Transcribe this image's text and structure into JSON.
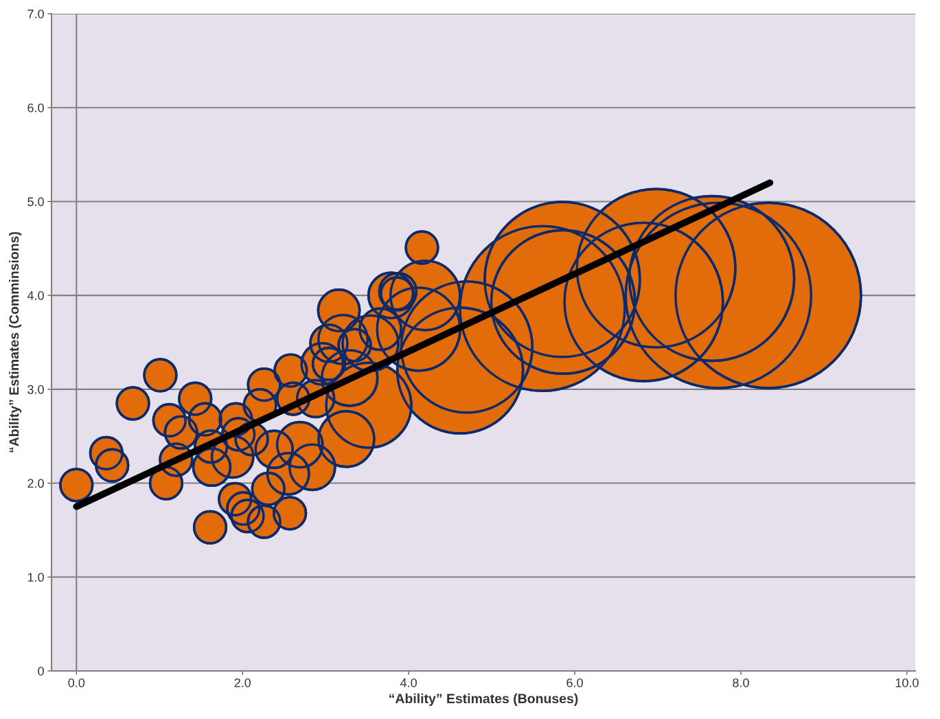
{
  "chart_data": {
    "type": "bubble",
    "xlabel": "“Ability” Estimates (Bonuses)",
    "ylabel": "“Ability” Estimates (Comminsions)",
    "xlim": [
      -0.3,
      10.1
    ],
    "ylim": [
      0,
      7
    ],
    "xticks": [
      {
        "value": 0,
        "label": "0.0"
      },
      {
        "value": 2,
        "label": "2.0"
      },
      {
        "value": 4,
        "label": "4.0"
      },
      {
        "value": 6,
        "label": "6.0"
      },
      {
        "value": 8,
        "label": "8.0"
      },
      {
        "value": 10,
        "label": "10.0"
      }
    ],
    "yticks": [
      0,
      {
        "value": 1,
        "label": "1.0"
      },
      {
        "value": 2,
        "label": "2.0"
      },
      {
        "value": 3,
        "label": "3.0"
      },
      {
        "value": 4,
        "label": "4.0"
      },
      {
        "value": 5,
        "label": "5.0"
      },
      {
        "value": 6,
        "label": "6.0"
      },
      {
        "value": 7,
        "label": "7.0"
      }
    ],
    "grid": "y",
    "ref_lines": [
      {
        "axis": "x",
        "value": 0,
        "color": "#808080"
      }
    ],
    "series": [
      {
        "color": "#e36c0a",
        "x": [
          0.0,
          0.36,
          0.43,
          0.68,
          1.01,
          1.08,
          1.12,
          1.2,
          1.26,
          1.43,
          1.55,
          1.61,
          1.63,
          1.62,
          1.88,
          1.92,
          1.91,
          2.01,
          2.06,
          1.95,
          2.11,
          2.26,
          2.26,
          2.31,
          2.21,
          2.38,
          2.55,
          2.57,
          2.58,
          2.61,
          2.84,
          2.69,
          2.88,
          2.96,
          3.04,
          3.16,
          3.21,
          3.04,
          3.25,
          3.29,
          3.35,
          3.52,
          3.54,
          3.66,
          3.79,
          3.87,
          3.86,
          4.16,
          4.2,
          4.12,
          4.7,
          4.62,
          5.61,
          5.86,
          5.85,
          6.98,
          6.83,
          7.65,
          7.73,
          8.33
        ],
        "values": [
          1.98,
          2.32,
          2.19,
          2.85,
          3.15,
          2.0,
          2.67,
          2.25,
          2.54,
          2.9,
          2.68,
          1.53,
          2.17,
          2.39,
          2.28,
          2.68,
          1.83,
          1.73,
          1.65,
          2.52,
          2.47,
          3.05,
          1.59,
          1.94,
          2.83,
          2.36,
          2.1,
          1.68,
          3.2,
          2.9,
          2.17,
          2.41,
          2.9,
          3.27,
          3.49,
          3.84,
          3.53,
          3.27,
          2.47,
          3.12,
          3.47,
          2.83,
          3.49,
          3.64,
          4.0,
          4.04,
          4.02,
          4.51,
          4.0,
          3.64,
          3.45,
          3.2,
          3.86,
          3.93,
          4.17,
          4.29,
          3.93,
          4.18,
          4.0,
          4.0
        ],
        "sizes": [
          0.03,
          0.03,
          0.03,
          0.03,
          0.03,
          0.03,
          0.03,
          0.03,
          0.03,
          0.03,
          0.03,
          0.03,
          0.04,
          0.03,
          0.05,
          0.03,
          0.03,
          0.03,
          0.03,
          0.03,
          0.03,
          0.03,
          0.03,
          0.03,
          0.03,
          0.04,
          0.05,
          0.03,
          0.03,
          0.03,
          0.06,
          0.06,
          0.04,
          0.05,
          0.04,
          0.05,
          0.07,
          0.03,
          0.09,
          0.09,
          0.03,
          0.21,
          0.09,
          0.05,
          0.06,
          0.04,
          0.03,
          0.03,
          0.14,
          0.2,
          0.5,
          0.46,
          0.79,
          0.6,
          0.7,
          0.73,
          0.73,
          0.79,
          1.0,
          1.0
        ]
      },
      {
        "type": "line",
        "color": "#000000",
        "x": [
          0.0,
          8.35
        ],
        "values": [
          1.75,
          5.2
        ]
      }
    ]
  }
}
